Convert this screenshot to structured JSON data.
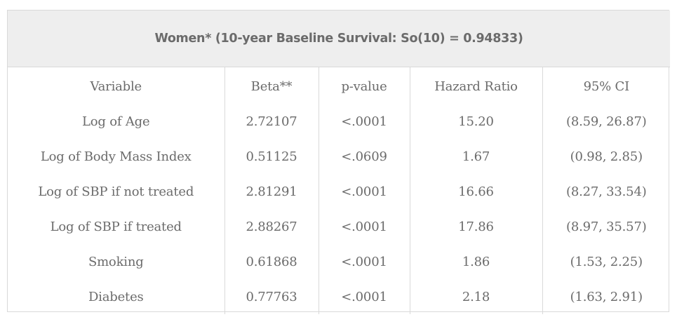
{
  "title": "Women* (10-year Baseline Survival: So(10) = 0.94833)",
  "columns": [
    "Variable",
    "Beta**",
    "p-value",
    "Hazard Ratio",
    "95% CI"
  ],
  "rows": [
    {
      "variable": "Log of Age",
      "beta": "2.72107",
      "p_value": "<.0001",
      "hazard_ratio": "15.20",
      "ci": "(8.59, 26.87)"
    },
    {
      "variable": "Log of Body Mass Index",
      "beta": "0.51125",
      "p_value": "<.0609",
      "hazard_ratio": "1.67",
      "ci": "(0.98, 2.85)"
    },
    {
      "variable": "Log of SBP if not treated",
      "beta": "2.81291",
      "p_value": "<.0001",
      "hazard_ratio": "16.66",
      "ci": "(8.27, 33.54)"
    },
    {
      "variable": "Log of SBP if treated",
      "beta": "2.88267",
      "p_value": "<.0001",
      "hazard_ratio": "17.86",
      "ci": "(8.97, 35.57)"
    },
    {
      "variable": "Smoking",
      "beta": "0.61868",
      "p_value": "<.0001",
      "hazard_ratio": "1.86",
      "ci": "(1.53, 2.25)"
    },
    {
      "variable": "Diabetes",
      "beta": "0.77763",
      "p_value": "<.0001",
      "hazard_ratio": "2.18",
      "ci": "(1.63, 2.91)"
    }
  ]
}
